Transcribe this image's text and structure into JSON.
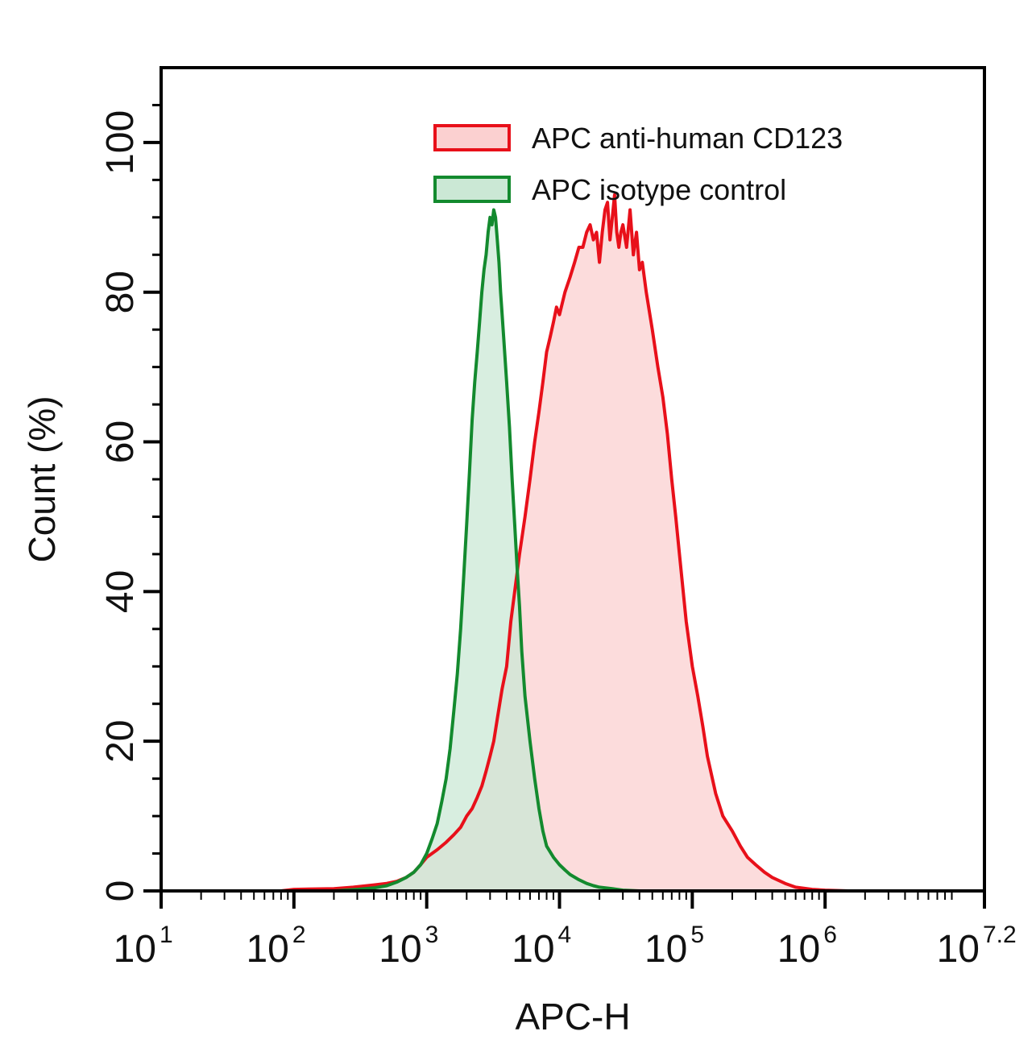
{
  "chart_data": {
    "type": "area",
    "xlabel": "APC-H",
    "ylabel": "Count (%)",
    "x_scale": "log10",
    "xlim": [
      10,
      15848932
    ],
    "ylim": [
      0,
      110
    ],
    "x_ticks": [
      {
        "value": 10,
        "base": "10",
        "exp": "1"
      },
      {
        "value": 100,
        "base": "10",
        "exp": "2"
      },
      {
        "value": 1000,
        "base": "10",
        "exp": "3"
      },
      {
        "value": 10000,
        "base": "10",
        "exp": "4"
      },
      {
        "value": 100000,
        "base": "10",
        "exp": "5"
      },
      {
        "value": 1000000,
        "base": "10",
        "exp": "6"
      },
      {
        "value": 15848932,
        "base": "10",
        "exp": "7.2"
      }
    ],
    "y_ticks": [
      {
        "value": 0,
        "label": "0"
      },
      {
        "value": 20,
        "label": "20"
      },
      {
        "value": 40,
        "label": "40"
      },
      {
        "value": 60,
        "label": "60"
      },
      {
        "value": 80,
        "label": "80"
      },
      {
        "value": 100,
        "label": "100"
      }
    ],
    "grid": false,
    "legend_position": "top-right",
    "series": [
      {
        "name": "APC anti-human CD123",
        "color": "#e8101a",
        "fill": "#fbd0d0",
        "x": [
          80,
          100,
          200,
          280,
          400,
          500,
          600,
          700,
          800,
          900,
          1000,
          1200,
          1400,
          1600,
          1800,
          2000,
          2200,
          2400,
          2600,
          2800,
          3000,
          3200,
          3400,
          3700,
          4000,
          4300,
          4600,
          5000,
          5500,
          6000,
          6500,
          7000,
          7500,
          8000,
          8500,
          9000,
          9500,
          10000,
          11000,
          12000,
          13000,
          14000,
          15000,
          16000,
          17000,
          18000,
          19000,
          20000,
          21000,
          22000,
          23000,
          24000,
          25000,
          26000,
          27000,
          28000,
          29000,
          30000,
          32000,
          34000,
          36000,
          38000,
          40000,
          42000,
          45000,
          50000,
          55000,
          60000,
          65000,
          70000,
          75000,
          80000,
          90000,
          100000,
          110000,
          120000,
          130000,
          150000,
          170000,
          200000,
          230000,
          260000,
          300000,
          350000,
          400000,
          500000,
          600000,
          800000,
          1000000,
          1500000
        ],
        "y": [
          0,
          0.2,
          0.3,
          0.5,
          0.8,
          1.0,
          1.3,
          1.8,
          2.5,
          3.5,
          4.5,
          5.5,
          6.5,
          7.5,
          8.5,
          10,
          11,
          12.5,
          14,
          16,
          18,
          20,
          23,
          27,
          30,
          36,
          40,
          45,
          50,
          55,
          60,
          64,
          68,
          72,
          74,
          76,
          78,
          77,
          80,
          82,
          84,
          86,
          86,
          88,
          89,
          87,
          88,
          84,
          88,
          91,
          92,
          87,
          90,
          93,
          88,
          86,
          88,
          89,
          86,
          91,
          85,
          88,
          83,
          84,
          80,
          75,
          70,
          66,
          61,
          55,
          50,
          45,
          36,
          30,
          26,
          22,
          18,
          13,
          10,
          8,
          6,
          4.5,
          3.5,
          2.5,
          1.8,
          1.0,
          0.5,
          0.2,
          0.1,
          0
        ]
      },
      {
        "name": "APC isotype control",
        "color": "#138a2e",
        "fill": "#cbe8d5",
        "x": [
          200,
          300,
          400,
          500,
          600,
          700,
          800,
          900,
          1000,
          1100,
          1200,
          1300,
          1400,
          1500,
          1600,
          1700,
          1800,
          1900,
          2000,
          2100,
          2200,
          2300,
          2400,
          2500,
          2600,
          2700,
          2800,
          2900,
          3000,
          3100,
          3200,
          3300,
          3400,
          3500,
          3600,
          3800,
          4000,
          4200,
          4400,
          4600,
          4800,
          5000,
          5200,
          5500,
          6000,
          6500,
          7000,
          7500,
          8000,
          9000,
          10000,
          11000,
          12000,
          14000,
          16000,
          18000,
          20000,
          25000,
          30000,
          40000
        ],
        "y": [
          0,
          0.2,
          0.4,
          0.7,
          1.2,
          1.8,
          2.5,
          3.5,
          5,
          7,
          9,
          12,
          15,
          19,
          24,
          29,
          35,
          42,
          49,
          56,
          63,
          68,
          72,
          76,
          80,
          83,
          85,
          88,
          90,
          89,
          91,
          90,
          87,
          84,
          80,
          74,
          68,
          62,
          55,
          49,
          43,
          38,
          32,
          26,
          20,
          15,
          11,
          8,
          6,
          4.5,
          3.5,
          2.8,
          2.2,
          1.5,
          1.0,
          0.7,
          0.5,
          0.3,
          0.1,
          0
        ]
      }
    ]
  }
}
